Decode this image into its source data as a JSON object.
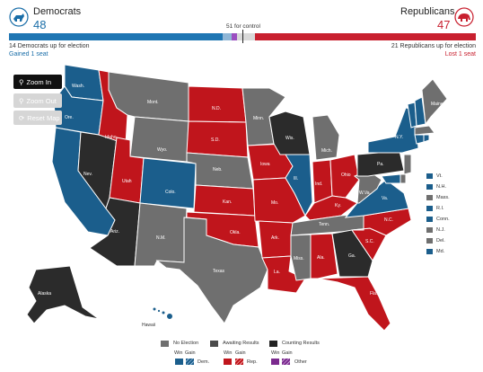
{
  "header": {
    "dem": {
      "name": "Democrats",
      "count": "48"
    },
    "rep": {
      "name": "Republicans",
      "count": "47"
    },
    "control_label": "51 for control"
  },
  "subheader": {
    "dem_up": "14 Democrats up for election",
    "dem_change": "Gained 1 seat",
    "rep_up": "21 Republicans up for election",
    "rep_change": "Lost 1 seat"
  },
  "controls": {
    "zoom_in": "Zoom In",
    "zoom_out": "Zoom Out",
    "reset_map": "Reset Map"
  },
  "colors": {
    "dem": "#1b5e8c",
    "rep": "#c0151c",
    "none": "#6f6f6f",
    "awaiting": "#4a4a4a",
    "counting": "#222222",
    "other": "#7b2a8e"
  },
  "states": {
    "wash": "Wash.",
    "ore": "Ore.",
    "idaho": "Idaho",
    "mont": "Mont.",
    "wyo": "Wyo.",
    "calif": "Calif.",
    "nev": "Nev.",
    "utah": "Utah",
    "colo": "Colo.",
    "ariz": "Ariz.",
    "nm": "N.M.",
    "nd": "N.D.",
    "sd": "S.D.",
    "neb": "Neb.",
    "kan": "Kan.",
    "okla": "Okla.",
    "texas": "Texas",
    "minn": "Minn.",
    "iowa": "Iowa",
    "mo": "Mo.",
    "ark": "Ark.",
    "la": "La.",
    "wis": "Wis.",
    "ill": "Ill.",
    "mich": "Mich.",
    "ind": "Ind.",
    "ohio": "Ohio",
    "ky": "Ky.",
    "tenn": "Tenn.",
    "miss": "Miss.",
    "ala": "Ala.",
    "ga": "Ga.",
    "fla": "Fla.",
    "sc": "S.C.",
    "nc": "N.C.",
    "va": "Va.",
    "wva": "W.Va.",
    "pa": "Pa.",
    "ny": "N.Y.",
    "maine": "Maine",
    "alaska": "Alaska",
    "hawaii": "Hawaii"
  },
  "ne_states": [
    "Vt.",
    "N.H.",
    "Mass.",
    "R.I.",
    "Conn.",
    "N.J.",
    "Del.",
    "Md."
  ],
  "legend": {
    "no_election": "No Election",
    "awaiting": "Awaiting Results",
    "counting": "Counting Results",
    "win": "Win",
    "gain": "Gain",
    "dem": "Dem.",
    "rep": "Rep.",
    "other": "Other"
  }
}
